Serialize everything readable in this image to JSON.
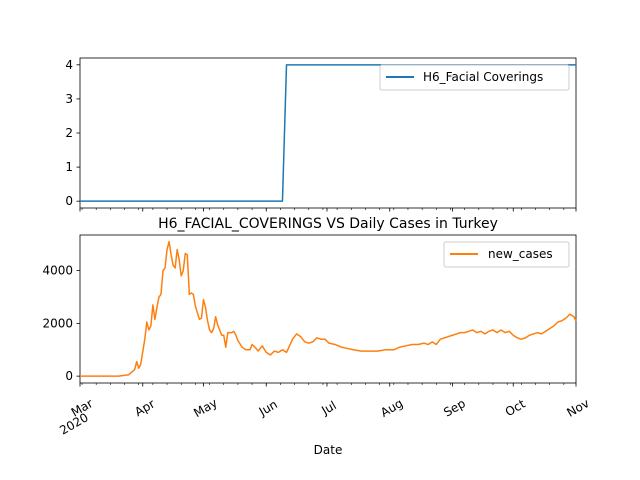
{
  "chart_data": [
    {
      "type": "line",
      "title": "",
      "xlabel": "",
      "ylabel": "",
      "x_range": [
        "2020-03-01",
        "2020-11-01"
      ],
      "ylim": [
        -0.2,
        4.2
      ],
      "yticks": [
        "0",
        "1",
        "2",
        "3",
        "4"
      ],
      "grid": false,
      "legend_position": "upper right",
      "series": [
        {
          "name": "H6_Facial Coverings",
          "color": "#1f77b4",
          "points": [
            [
              "2020-03-01",
              0
            ],
            [
              "2020-06-09",
              0
            ],
            [
              "2020-06-11",
              4
            ],
            [
              "2020-11-01",
              4
            ]
          ]
        }
      ]
    },
    {
      "type": "line",
      "title": "H6_FACIAL_COVERINGS VS Daily Cases in Turkey",
      "xlabel": "Date",
      "ylabel": "",
      "x_range": [
        "2020-03-01",
        "2020-11-01"
      ],
      "ylim": [
        -260,
        5350
      ],
      "yticks": [
        "0",
        "2000",
        "4000"
      ],
      "xticks": [
        {
          "date": "2020-03-01",
          "label": "Mar",
          "sublabel": "2020"
        },
        {
          "date": "2020-04-01",
          "label": "Apr"
        },
        {
          "date": "2020-05-01",
          "label": "May"
        },
        {
          "date": "2020-06-01",
          "label": "Jun"
        },
        {
          "date": "2020-07-01",
          "label": "Jul"
        },
        {
          "date": "2020-08-01",
          "label": "Aug"
        },
        {
          "date": "2020-09-01",
          "label": "Sep"
        },
        {
          "date": "2020-10-01",
          "label": "Oct"
        },
        {
          "date": "2020-11-01",
          "label": "Nov"
        }
      ],
      "grid": false,
      "legend_position": "upper right",
      "series": [
        {
          "name": "new_cases",
          "color": "#ff7f0e",
          "points": [
            [
              "2020-03-01",
              0
            ],
            [
              "2020-03-20",
              0
            ],
            [
              "2020-03-25",
              50
            ],
            [
              "2020-03-28",
              250
            ],
            [
              "2020-03-29",
              550
            ],
            [
              "2020-03-30",
              300
            ],
            [
              "2020-03-31",
              450
            ],
            [
              "2020-04-02",
              1400
            ],
            [
              "2020-04-03",
              2050
            ],
            [
              "2020-04-04",
              1750
            ],
            [
              "2020-04-05",
              1900
            ],
            [
              "2020-04-06",
              2700
            ],
            [
              "2020-04-07",
              2150
            ],
            [
              "2020-04-08",
              2600
            ],
            [
              "2020-04-09",
              3000
            ],
            [
              "2020-04-10",
              3100
            ],
            [
              "2020-04-11",
              4000
            ],
            [
              "2020-04-12",
              4100
            ],
            [
              "2020-04-13",
              4800
            ],
            [
              "2020-04-14",
              5100
            ],
            [
              "2020-04-15",
              4600
            ],
            [
              "2020-04-16",
              4200
            ],
            [
              "2020-04-17",
              4100
            ],
            [
              "2020-04-18",
              4800
            ],
            [
              "2020-04-19",
              4400
            ],
            [
              "2020-04-20",
              3800
            ],
            [
              "2020-04-21",
              4000
            ],
            [
              "2020-04-22",
              4650
            ],
            [
              "2020-04-23",
              4600
            ],
            [
              "2020-04-24",
              3100
            ],
            [
              "2020-04-25",
              3150
            ],
            [
              "2020-04-26",
              3100
            ],
            [
              "2020-04-27",
              2650
            ],
            [
              "2020-04-28",
              2400
            ],
            [
              "2020-04-29",
              2150
            ],
            [
              "2020-04-30",
              2200
            ],
            [
              "2020-05-01",
              2900
            ],
            [
              "2020-05-02",
              2600
            ],
            [
              "2020-05-03",
              2100
            ],
            [
              "2020-05-04",
              1750
            ],
            [
              "2020-05-05",
              1650
            ],
            [
              "2020-05-06",
              1800
            ],
            [
              "2020-05-07",
              2250
            ],
            [
              "2020-05-08",
              1950
            ],
            [
              "2020-05-09",
              1750
            ],
            [
              "2020-05-10",
              1550
            ],
            [
              "2020-05-11",
              1550
            ],
            [
              "2020-05-12",
              1100
            ],
            [
              "2020-05-13",
              1650
            ],
            [
              "2020-05-15",
              1650
            ],
            [
              "2020-05-16",
              1700
            ],
            [
              "2020-05-17",
              1550
            ],
            [
              "2020-05-18",
              1350
            ],
            [
              "2020-05-20",
              1100
            ],
            [
              "2020-05-22",
              1000
            ],
            [
              "2020-05-24",
              1000
            ],
            [
              "2020-05-25",
              1200
            ],
            [
              "2020-05-27",
              1050
            ],
            [
              "2020-05-28",
              950
            ],
            [
              "2020-05-30",
              1150
            ],
            [
              "2020-06-01",
              900
            ],
            [
              "2020-06-03",
              800
            ],
            [
              "2020-06-05",
              950
            ],
            [
              "2020-06-07",
              900
            ],
            [
              "2020-06-09",
              1000
            ],
            [
              "2020-06-11",
              900
            ],
            [
              "2020-06-14",
              1400
            ],
            [
              "2020-06-16",
              1600
            ],
            [
              "2020-06-18",
              1500
            ],
            [
              "2020-06-20",
              1300
            ],
            [
              "2020-06-22",
              1250
            ],
            [
              "2020-06-24",
              1300
            ],
            [
              "2020-06-26",
              1450
            ],
            [
              "2020-06-28",
              1400
            ],
            [
              "2020-06-30",
              1400
            ],
            [
              "2020-07-02",
              1250
            ],
            [
              "2020-07-05",
              1200
            ],
            [
              "2020-07-08",
              1100
            ],
            [
              "2020-07-11",
              1050
            ],
            [
              "2020-07-14",
              1000
            ],
            [
              "2020-07-18",
              950
            ],
            [
              "2020-07-22",
              950
            ],
            [
              "2020-07-26",
              950
            ],
            [
              "2020-07-30",
              1000
            ],
            [
              "2020-08-03",
              1000
            ],
            [
              "2020-08-06",
              1100
            ],
            [
              "2020-08-09",
              1150
            ],
            [
              "2020-08-12",
              1200
            ],
            [
              "2020-08-15",
              1200
            ],
            [
              "2020-08-18",
              1250
            ],
            [
              "2020-08-20",
              1200
            ],
            [
              "2020-08-22",
              1300
            ],
            [
              "2020-08-24",
              1200
            ],
            [
              "2020-08-26",
              1400
            ],
            [
              "2020-08-28",
              1450
            ],
            [
              "2020-08-30",
              1500
            ],
            [
              "2020-09-01",
              1550
            ],
            [
              "2020-09-03",
              1600
            ],
            [
              "2020-09-05",
              1650
            ],
            [
              "2020-09-07",
              1650
            ],
            [
              "2020-09-09",
              1700
            ],
            [
              "2020-09-11",
              1750
            ],
            [
              "2020-09-13",
              1650
            ],
            [
              "2020-09-15",
              1700
            ],
            [
              "2020-09-17",
              1600
            ],
            [
              "2020-09-19",
              1700
            ],
            [
              "2020-09-21",
              1750
            ],
            [
              "2020-09-23",
              1650
            ],
            [
              "2020-09-25",
              1750
            ],
            [
              "2020-09-27",
              1650
            ],
            [
              "2020-09-29",
              1700
            ],
            [
              "2020-10-01",
              1550
            ],
            [
              "2020-10-03",
              1450
            ],
            [
              "2020-10-05",
              1400
            ],
            [
              "2020-10-07",
              1450
            ],
            [
              "2020-10-09",
              1550
            ],
            [
              "2020-10-11",
              1600
            ],
            [
              "2020-10-13",
              1650
            ],
            [
              "2020-10-15",
              1600
            ],
            [
              "2020-10-17",
              1700
            ],
            [
              "2020-10-19",
              1800
            ],
            [
              "2020-10-21",
              1900
            ],
            [
              "2020-10-23",
              2050
            ],
            [
              "2020-10-25",
              2100
            ],
            [
              "2020-10-27",
              2200
            ],
            [
              "2020-10-29",
              2350
            ],
            [
              "2020-10-31",
              2250
            ],
            [
              "2020-11-01",
              2100
            ]
          ]
        }
      ]
    }
  ]
}
